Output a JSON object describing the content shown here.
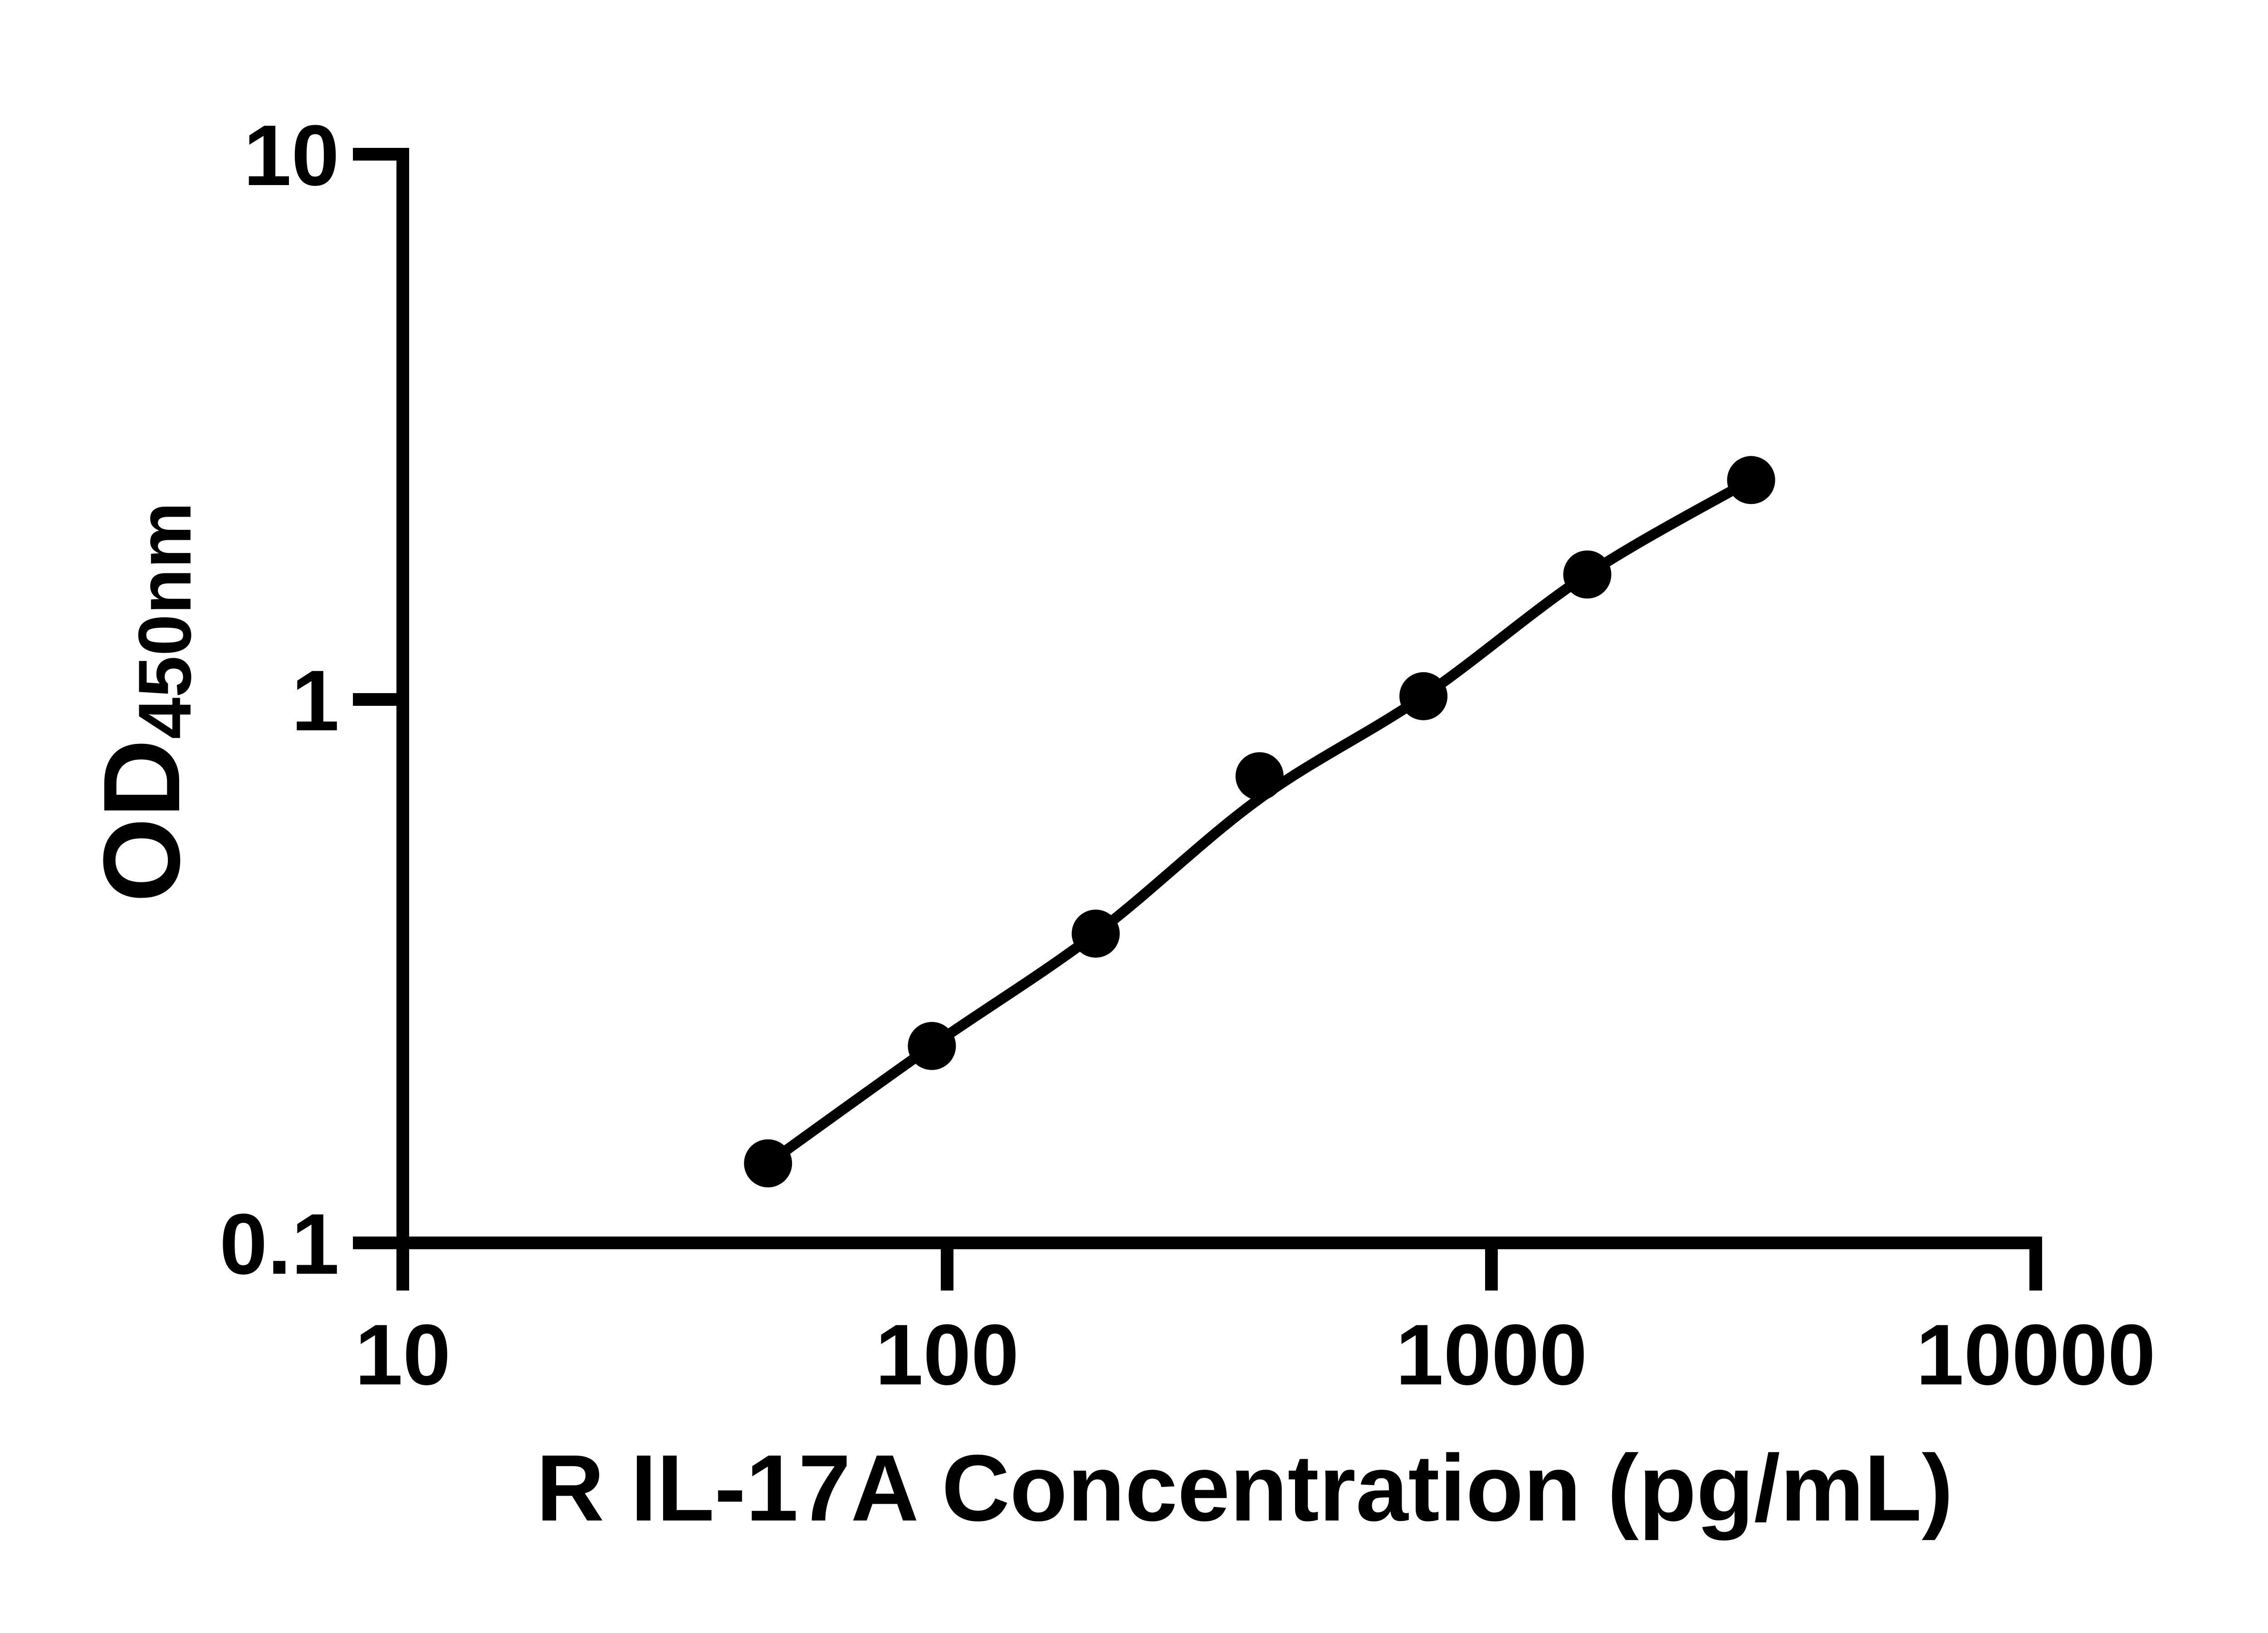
{
  "chart_data": {
    "type": "scatter",
    "title": "",
    "xlabel": "R IL-17A Concentration (pg/mL)",
    "ylabel": "OD450nm",
    "ylabel_main": "OD",
    "ylabel_sub": "450nm",
    "x_scale": "log10",
    "y_scale": "log10",
    "xlim": [
      10,
      10000
    ],
    "ylim": [
      0.1,
      10
    ],
    "x_ticks": [
      10,
      100,
      1000,
      10000
    ],
    "x_tick_labels": [
      "10",
      "100",
      "1000",
      "10000"
    ],
    "y_ticks": [
      0.1,
      1,
      10
    ],
    "y_tick_labels": [
      "0.1",
      "1",
      "10"
    ],
    "grid": false,
    "legend_position": "none",
    "marker_color": "#000000",
    "line_color": "#000000",
    "background_color": "#ffffff",
    "series": [
      {
        "name": "standard-points",
        "kind": "scatter",
        "x": [
          46.88,
          93.75,
          187.5,
          375,
          750,
          1500,
          3000
        ],
        "y": [
          0.14,
          0.23,
          0.37,
          0.72,
          1.01,
          1.69,
          2.52
        ]
      },
      {
        "name": "fit-curve",
        "kind": "line",
        "x": [
          46.88,
          93.75,
          187.5,
          375,
          750,
          1500,
          3000
        ],
        "y": [
          0.14,
          0.23,
          0.37,
          0.655,
          1.01,
          1.69,
          2.52
        ]
      }
    ]
  }
}
